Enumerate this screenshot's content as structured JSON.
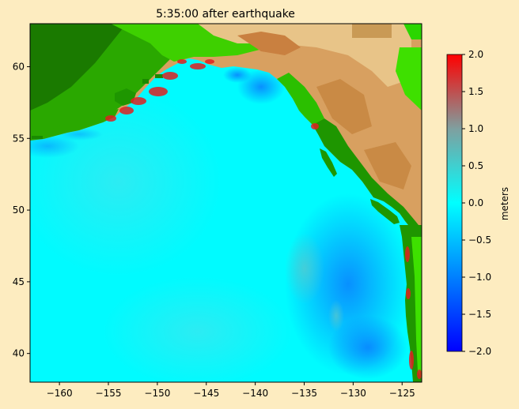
{
  "title": "5:35:00 after earthquake",
  "map": {
    "lon_range": [
      -163,
      -123
    ],
    "lat_range": [
      38,
      63
    ],
    "xticks": [
      -160,
      -155,
      -150,
      -145,
      -140,
      -135,
      -130,
      -125
    ],
    "yticks": [
      40,
      45,
      50,
      55,
      60
    ],
    "xtick_labels": [
      "−160",
      "−155",
      "−150",
      "−145",
      "−140",
      "−135",
      "−130",
      "−125"
    ],
    "ytick_labels": [
      "40",
      "45",
      "50",
      "55",
      "60"
    ]
  },
  "colorbar": {
    "label": "meters",
    "range": [
      -2.0,
      2.0
    ],
    "ticks": [
      2.0,
      1.5,
      1.0,
      0.5,
      0.0,
      -0.5,
      -1.0,
      -1.5,
      -2.0
    ],
    "tick_labels": [
      "2.0",
      "1.5",
      "1.0",
      "0.5",
      "0.0",
      "−0.5",
      "−1.0",
      "−1.5",
      "−2.0"
    ],
    "colors": [
      "#0000ff",
      "#0080ff",
      "#00ffff",
      "#7f7f7f",
      "#ff0000"
    ]
  },
  "colors": {
    "background": "#fdecc0",
    "ocean": "#00ffff",
    "land_low": "#1a8a00",
    "land_mid": "#3ee000",
    "land_high": "#c99050",
    "land_peak": "#f0d090"
  }
}
